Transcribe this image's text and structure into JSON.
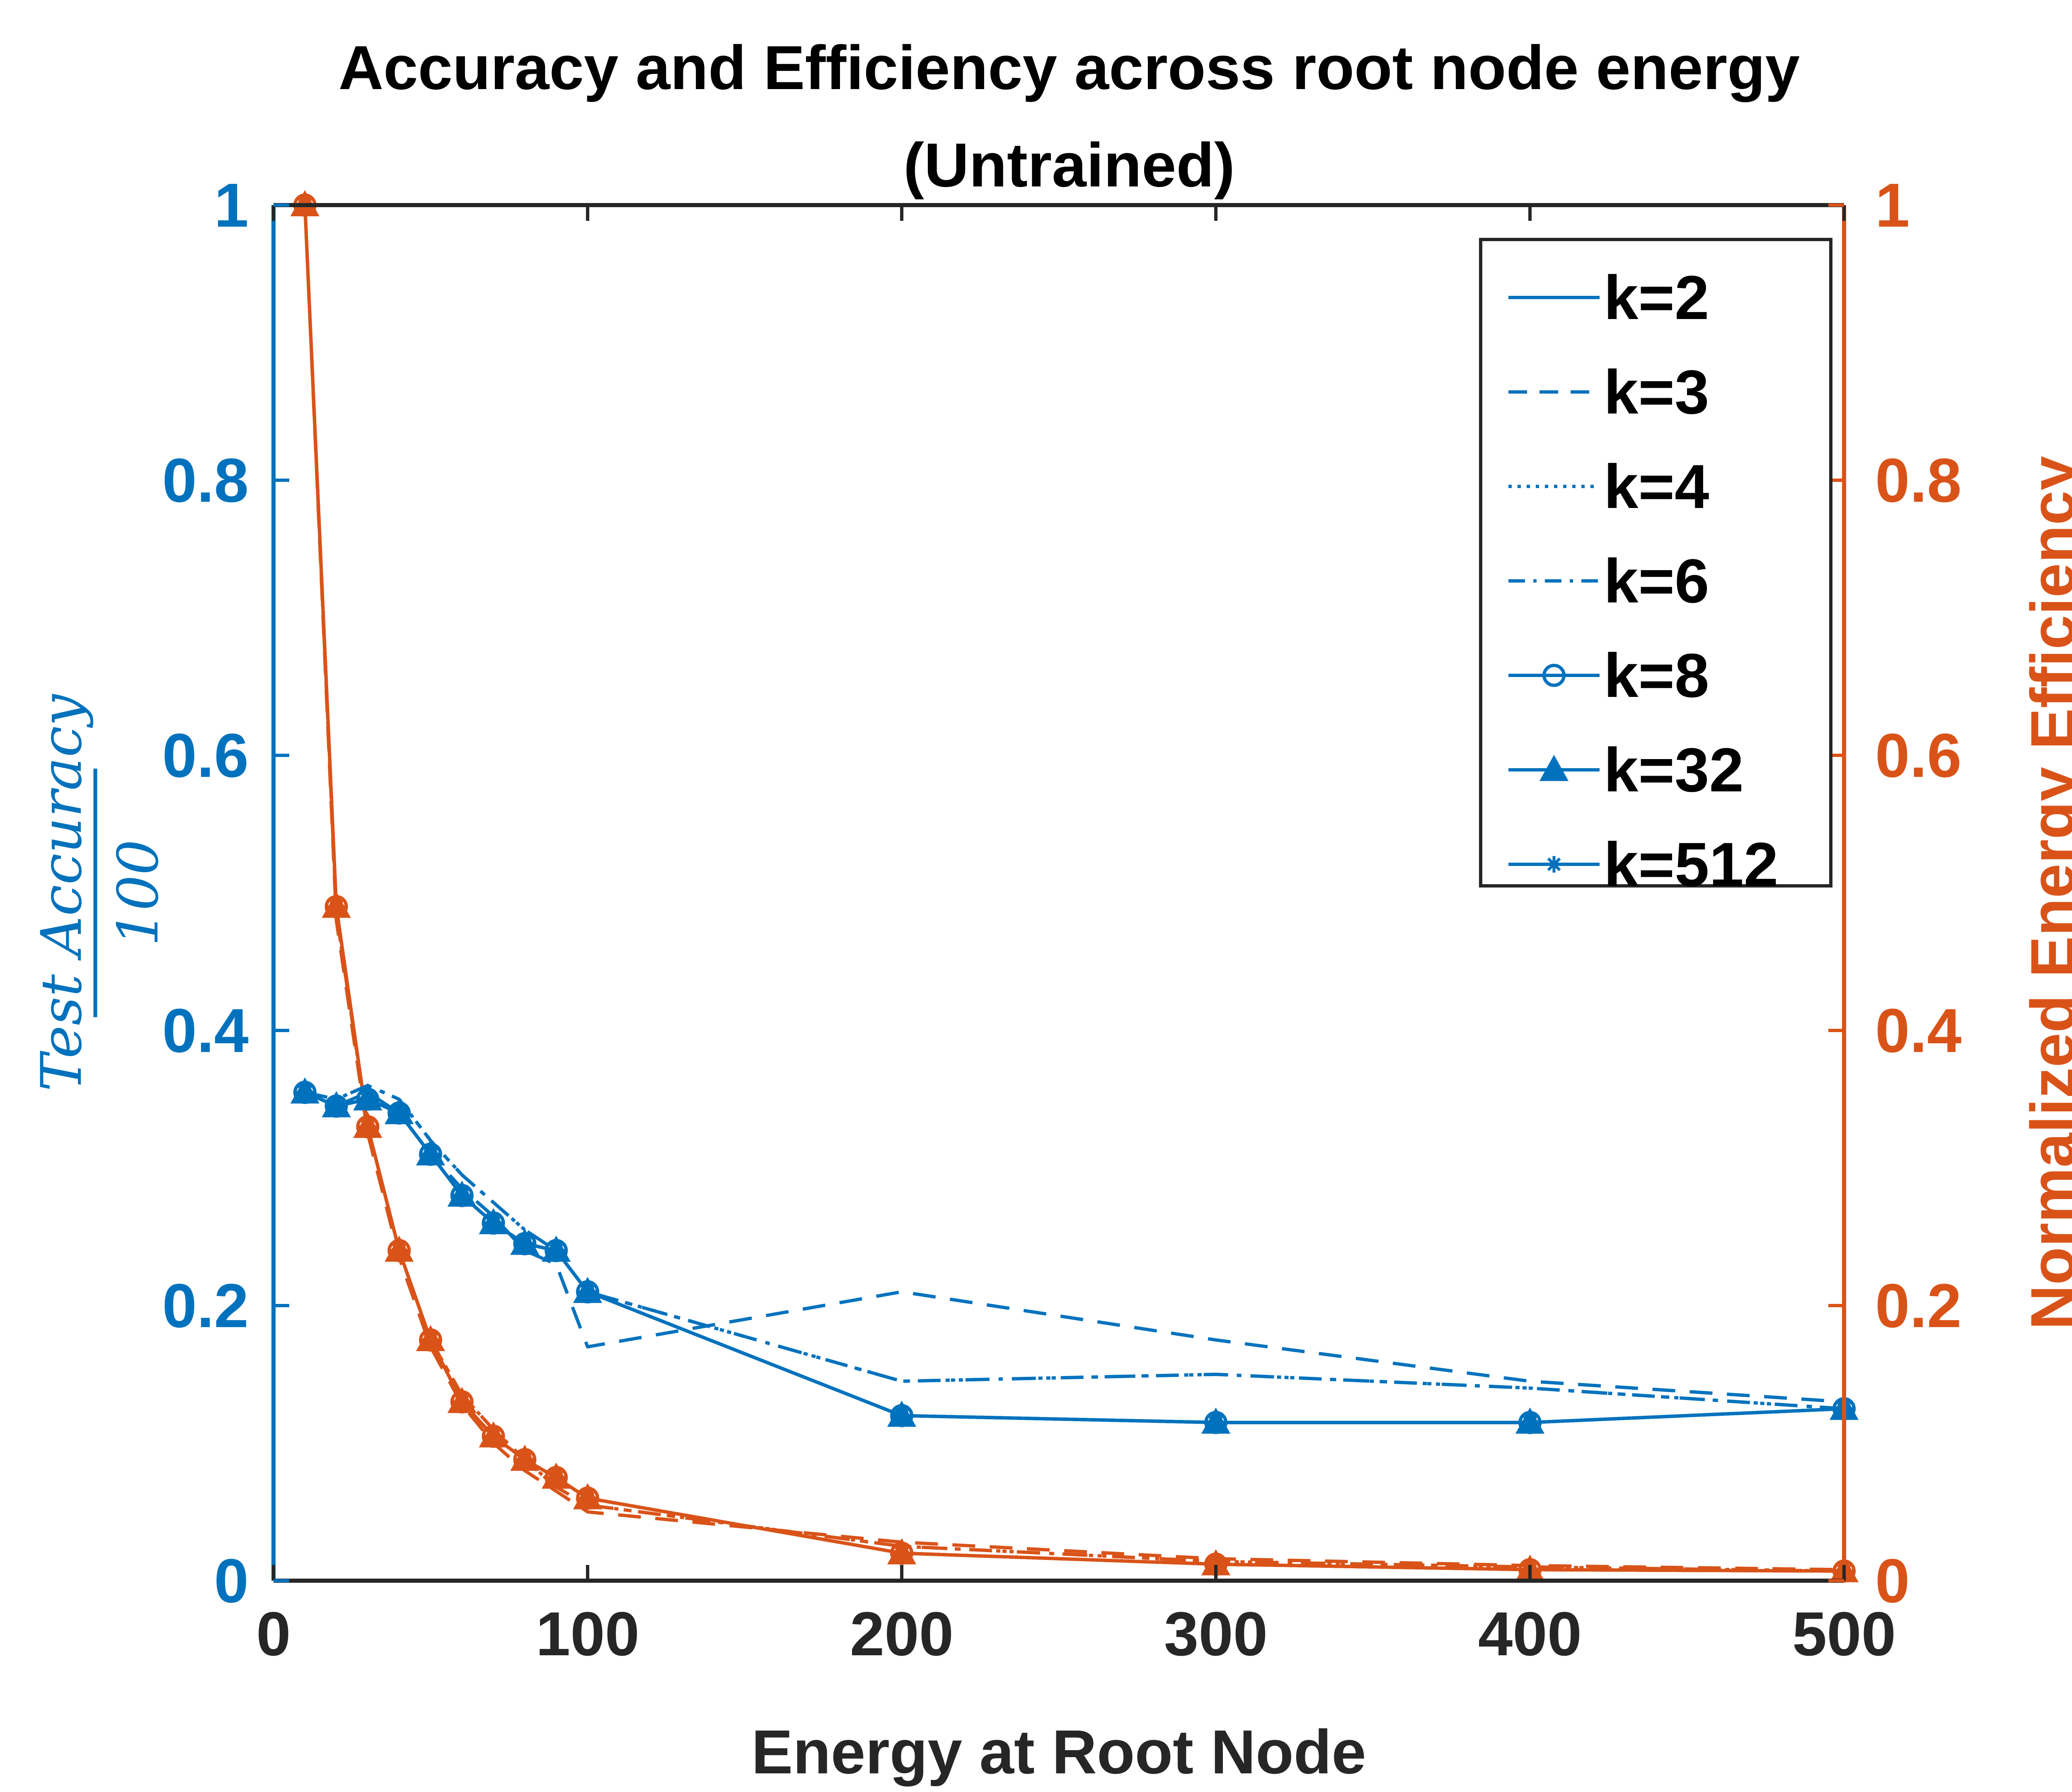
{
  "chart_data": {
    "type": "line",
    "title": [
      "Accuracy and Efficiency across root node energy",
      "(Untrained)"
    ],
    "xlabel": "Energy at Root Node",
    "ylabel_left": {
      "numerator": "Test Accuracy",
      "denominator": "100"
    },
    "ylabel_right": "Normalized Energy Efficiency",
    "xlim": [
      0,
      500
    ],
    "ylim_left": [
      0,
      1
    ],
    "ylim_right": [
      0,
      1
    ],
    "x_ticks": [
      "0",
      "100",
      "200",
      "300",
      "400",
      "500"
    ],
    "y_ticks_left": [
      "0",
      "0.2",
      "0.4",
      "0.6",
      "0.8",
      "1"
    ],
    "y_ticks_right": [
      "0",
      "0.2",
      "0.4",
      "0.6",
      "0.8",
      "1"
    ],
    "grid": false,
    "legend_position": "top-right",
    "colors": {
      "accuracy": "#0072BD",
      "efficiency": "#D95319",
      "axis": "#262626"
    },
    "x": [
      10,
      20,
      30,
      40,
      50,
      60,
      70,
      80,
      90,
      100,
      200,
      300,
      400,
      500
    ],
    "accuracy_series": [
      {
        "name": "k=2",
        "style": "solid",
        "marker": "none",
        "values": [
          0.355,
          0.345,
          0.35,
          0.34,
          0.31,
          0.28,
          0.26,
          0.245,
          0.24,
          0.21,
          0.12,
          0.115,
          0.115,
          0.125
        ]
      },
      {
        "name": "k=3",
        "style": "dashed",
        "marker": "none",
        "values": [
          0.355,
          0.345,
          0.355,
          0.34,
          0.31,
          0.285,
          0.265,
          0.24,
          0.23,
          0.17,
          0.21,
          0.175,
          0.145,
          0.13
        ]
      },
      {
        "name": "k=4",
        "style": "dotted",
        "marker": "none",
        "values": [
          0.355,
          0.35,
          0.36,
          0.35,
          0.32,
          0.295,
          0.275,
          0.255,
          0.24,
          0.21,
          0.145,
          0.15,
          0.14,
          0.125
        ]
      },
      {
        "name": "k=6",
        "style": "dashdot",
        "marker": "none",
        "values": [
          0.355,
          0.35,
          0.36,
          0.35,
          0.32,
          0.295,
          0.275,
          0.255,
          0.24,
          0.21,
          0.145,
          0.15,
          0.14,
          0.125
        ]
      },
      {
        "name": "k=8",
        "style": "solid",
        "marker": "circle",
        "values": [
          0.355,
          0.345,
          0.35,
          0.34,
          0.31,
          0.28,
          0.26,
          0.245,
          0.24,
          0.21,
          0.12,
          0.115,
          0.115,
          0.125
        ]
      },
      {
        "name": "k=32",
        "style": "solid",
        "marker": "triangle",
        "values": [
          0.355,
          0.345,
          0.35,
          0.34,
          0.31,
          0.28,
          0.26,
          0.245,
          0.24,
          0.21,
          0.12,
          0.115,
          0.115,
          0.125
        ]
      },
      {
        "name": "k=512",
        "style": "solid",
        "marker": "asterisk",
        "values": [
          0.355,
          0.345,
          0.35,
          0.34,
          0.31,
          0.28,
          0.26,
          0.245,
          0.24,
          0.21,
          0.12,
          0.115,
          0.115,
          0.125
        ]
      }
    ],
    "efficiency_series": [
      {
        "style": "solid",
        "marker": "none",
        "values": [
          1.0,
          0.49,
          0.33,
          0.24,
          0.175,
          0.13,
          0.105,
          0.088,
          0.075,
          0.06,
          0.02,
          0.012,
          0.008,
          0.007
        ]
      },
      {
        "style": "dashed",
        "marker": "none",
        "values": [
          1.0,
          0.48,
          0.325,
          0.235,
          0.17,
          0.128,
          0.1,
          0.08,
          0.065,
          0.05,
          0.028,
          0.016,
          0.011,
          0.008
        ]
      },
      {
        "style": "dotted",
        "marker": "none",
        "values": [
          1.0,
          0.485,
          0.33,
          0.24,
          0.175,
          0.135,
          0.11,
          0.088,
          0.068,
          0.055,
          0.025,
          0.014,
          0.01,
          0.007
        ]
      },
      {
        "style": "dashdot",
        "marker": "none",
        "values": [
          1.0,
          0.485,
          0.33,
          0.24,
          0.175,
          0.135,
          0.11,
          0.088,
          0.068,
          0.055,
          0.025,
          0.014,
          0.01,
          0.007
        ]
      },
      {
        "style": "solid",
        "marker": "circle",
        "values": [
          1.0,
          0.49,
          0.33,
          0.24,
          0.175,
          0.13,
          0.105,
          0.088,
          0.075,
          0.06,
          0.02,
          0.012,
          0.008,
          0.007
        ]
      },
      {
        "style": "solid",
        "marker": "triangle",
        "values": [
          1.0,
          0.49,
          0.33,
          0.24,
          0.175,
          0.13,
          0.105,
          0.088,
          0.075,
          0.06,
          0.02,
          0.012,
          0.008,
          0.007
        ]
      },
      {
        "style": "solid",
        "marker": "asterisk",
        "values": [
          1.0,
          0.49,
          0.33,
          0.24,
          0.175,
          0.13,
          0.105,
          0.088,
          0.075,
          0.06,
          0.02,
          0.012,
          0.008,
          0.007
        ]
      }
    ]
  }
}
